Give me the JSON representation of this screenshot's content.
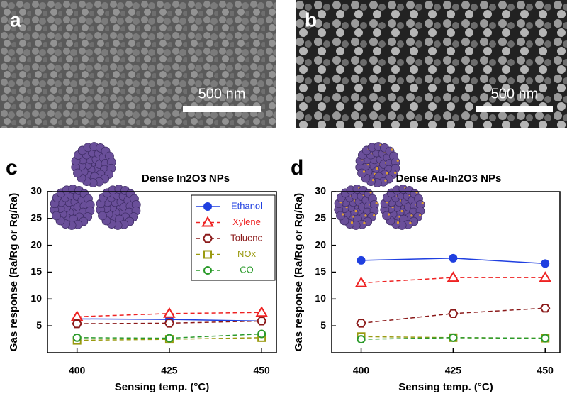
{
  "images": [
    {
      "label": "a",
      "scale_bar": "500 nm"
    },
    {
      "label": "b",
      "scale_bar": "500 nm"
    }
  ],
  "chart_data": [
    {
      "type": "line",
      "label": "c",
      "title": "Dense In2O3 NPs",
      "x_label": "Sensing temp. (°C)",
      "y_label": "Gas response (Ra/Rg or Rg/Ra)",
      "x": [
        400,
        425,
        450
      ],
      "xlim": [
        392,
        454
      ],
      "xticks": [
        400,
        425,
        450
      ],
      "ylim": [
        0,
        30
      ],
      "yticks": [
        5,
        10,
        15,
        20,
        25,
        30
      ],
      "legend": "upper right",
      "series": [
        {
          "name": "Ethanol",
          "color": "#1f3fe0",
          "marker": "circle-filled",
          "dashed": false,
          "values": [
            6.3,
            6.2,
            5.9
          ]
        },
        {
          "name": "Xylene",
          "color": "#ee2222",
          "marker": "triangle",
          "dashed": true,
          "values": [
            6.7,
            7.3,
            7.5
          ]
        },
        {
          "name": "Toluene",
          "color": "#8b1a1a",
          "marker": "hexagon",
          "dashed": true,
          "values": [
            5.4,
            5.5,
            5.9
          ]
        },
        {
          "name": "NOx",
          "color": "#9a9a10",
          "marker": "square",
          "dashed": true,
          "values": [
            2.3,
            2.5,
            2.8
          ]
        },
        {
          "name": "CO",
          "color": "#2a9a2a",
          "marker": "circle",
          "dashed": true,
          "values": [
            2.8,
            2.7,
            3.5
          ]
        }
      ]
    },
    {
      "type": "line",
      "label": "d",
      "title": "Dense Au-In2O3 NPs",
      "x_label": "Sensing temp. (°C)",
      "y_label": "Gas response (Ra/Rg or Rg/Ra)",
      "x": [
        400,
        425,
        450
      ],
      "xlim": [
        392,
        454
      ],
      "xticks": [
        400,
        425,
        450
      ],
      "ylim": [
        0,
        30
      ],
      "yticks": [
        5,
        10,
        15,
        20,
        25,
        30
      ],
      "series": [
        {
          "color": "#1f3fe0",
          "marker": "circle-filled",
          "dashed": false,
          "values": [
            17.2,
            17.6,
            16.6
          ]
        },
        {
          "color": "#ee2222",
          "marker": "triangle",
          "dashed": true,
          "values": [
            13,
            14,
            14
          ]
        },
        {
          "color": "#8b1a1a",
          "marker": "hexagon",
          "dashed": true,
          "values": [
            5.5,
            7.3,
            8.3
          ]
        },
        {
          "color": "#9a9a10",
          "marker": "square",
          "dashed": true,
          "values": [
            3,
            2.8,
            2.7
          ]
        },
        {
          "color": "#2a9a2a",
          "marker": "circle",
          "dashed": true,
          "values": [
            2.5,
            2.8,
            2.7
          ]
        }
      ]
    }
  ]
}
